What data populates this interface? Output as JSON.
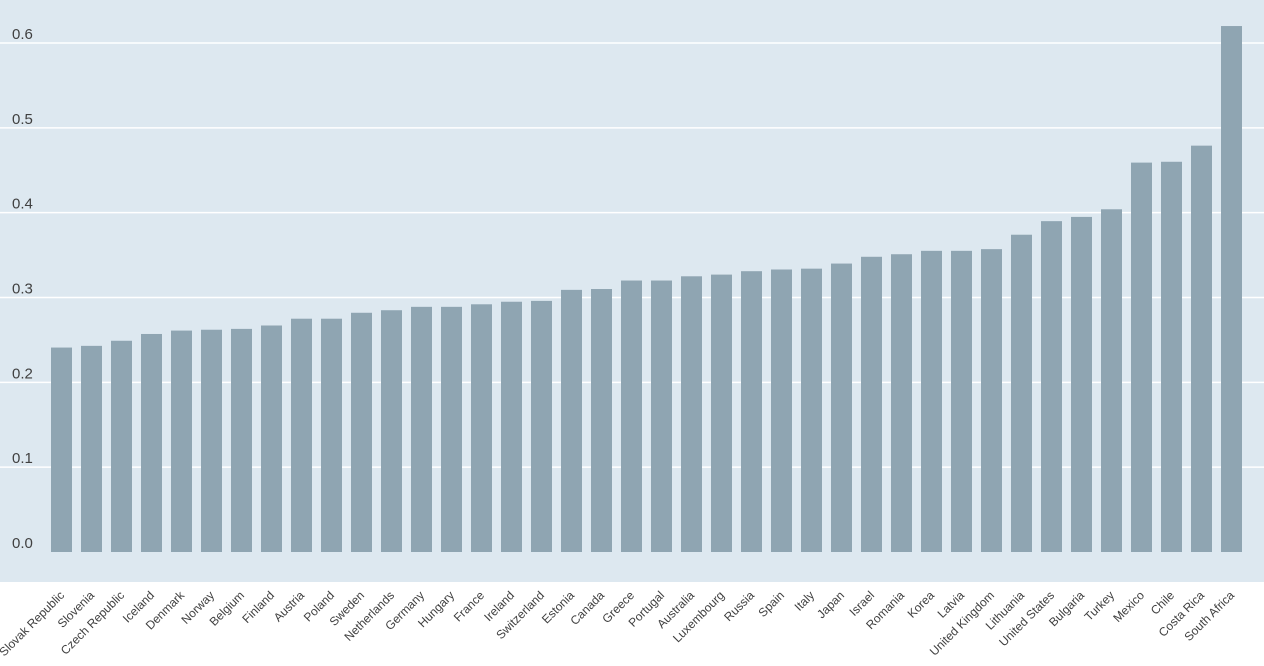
{
  "chart_data": {
    "type": "bar",
    "title": "",
    "xlabel": "",
    "ylabel": "",
    "ylim": [
      0,
      0.6
    ],
    "yticks": [
      "0.0",
      "0.1",
      "0.2",
      "0.3",
      "0.4",
      "0.5",
      "0.6"
    ],
    "grid": true,
    "legend": "none",
    "colors": {
      "background": "#dde8f0",
      "bar": "#8fa5b2",
      "grid": "#ffffff",
      "text": "#404040"
    },
    "categories": [
      "Slovak Republic",
      "Slovenia",
      "Czech Republic",
      "Iceland",
      "Denmark",
      "Norway",
      "Belgium",
      "Finland",
      "Austria",
      "Poland",
      "Sweden",
      "Netherlands",
      "Germany",
      "Hungary",
      "France",
      "Ireland",
      "Switzerland",
      "Estonia",
      "Canada",
      "Greece",
      "Portugal",
      "Australia",
      "Luxembourg",
      "Russia",
      "Spain",
      "Italy",
      "Japan",
      "Israel",
      "Romania",
      "Korea",
      "Latvia",
      "United Kingdom",
      "Lithuania",
      "United States",
      "Bulgaria",
      "Turkey",
      "Mexico",
      "Chile",
      "Costa Rica",
      "South Africa"
    ],
    "values": [
      0.241,
      0.243,
      0.249,
      0.257,
      0.261,
      0.262,
      0.263,
      0.267,
      0.275,
      0.275,
      0.282,
      0.285,
      0.289,
      0.289,
      0.292,
      0.295,
      0.296,
      0.309,
      0.31,
      0.32,
      0.32,
      0.325,
      0.327,
      0.331,
      0.333,
      0.334,
      0.34,
      0.348,
      0.351,
      0.355,
      0.355,
      0.357,
      0.374,
      0.39,
      0.395,
      0.404,
      0.459,
      0.46,
      0.479,
      0.62
    ]
  }
}
